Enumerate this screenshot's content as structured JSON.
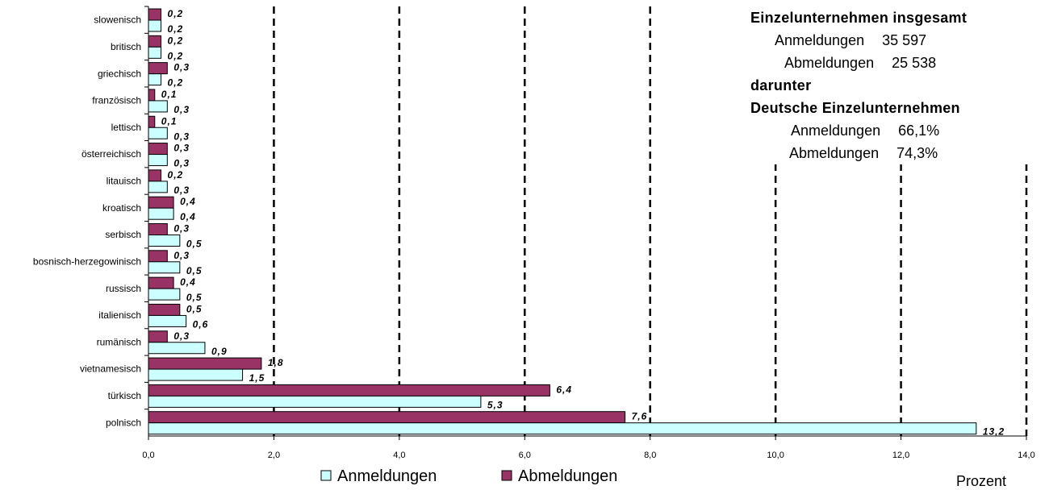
{
  "chart_data": {
    "type": "bar",
    "orientation": "horizontal",
    "categories": [
      "polnisch",
      "türkisch",
      "vietnamesisch",
      "rumänisch",
      "italienisch",
      "russisch",
      "bosnisch-herzegowinisch",
      "serbisch",
      "kroatisch",
      "litauisch",
      "österreichisch",
      "lettisch",
      "französisch",
      "griechisch",
      "britisch",
      "slowenisch"
    ],
    "series": [
      {
        "name": "Anmeldungen",
        "color": "#ccffff",
        "values": [
          13.2,
          5.3,
          1.5,
          0.9,
          0.6,
          0.5,
          0.5,
          0.5,
          0.4,
          0.3,
          0.3,
          0.3,
          0.3,
          0.2,
          0.2,
          0.2
        ]
      },
      {
        "name": "Abmeldungen",
        "color": "#993366",
        "values": [
          7.6,
          6.4,
          1.8,
          0.3,
          0.5,
          0.4,
          0.3,
          0.3,
          0.4,
          0.2,
          0.3,
          0.1,
          0.1,
          0.3,
          0.2,
          0.2
        ]
      }
    ],
    "xticks": [
      "0,0",
      "2,0",
      "4,0",
      "6,0",
      "8,0",
      "10,0",
      "12,0",
      "14,0"
    ],
    "xlim": [
      0,
      14
    ],
    "xlabel": "Prozent",
    "gridlines": "vertical dashed",
    "legend_position": "bottom"
  },
  "info": {
    "title": "Einzelunternehmen insgesamt",
    "rows": [
      {
        "label": "Anmeldungen",
        "value": "35 597"
      },
      {
        "label": "Abmeldungen",
        "value": "25 538"
      }
    ],
    "sub_title_1": "darunter",
    "sub_title_2": "Deutsche Einzelunternehmen",
    "sub_rows": [
      {
        "label": "Anmeldungen",
        "value": "66,1%"
      },
      {
        "label": "Abmeldungen",
        "value": "74,3%"
      }
    ]
  }
}
